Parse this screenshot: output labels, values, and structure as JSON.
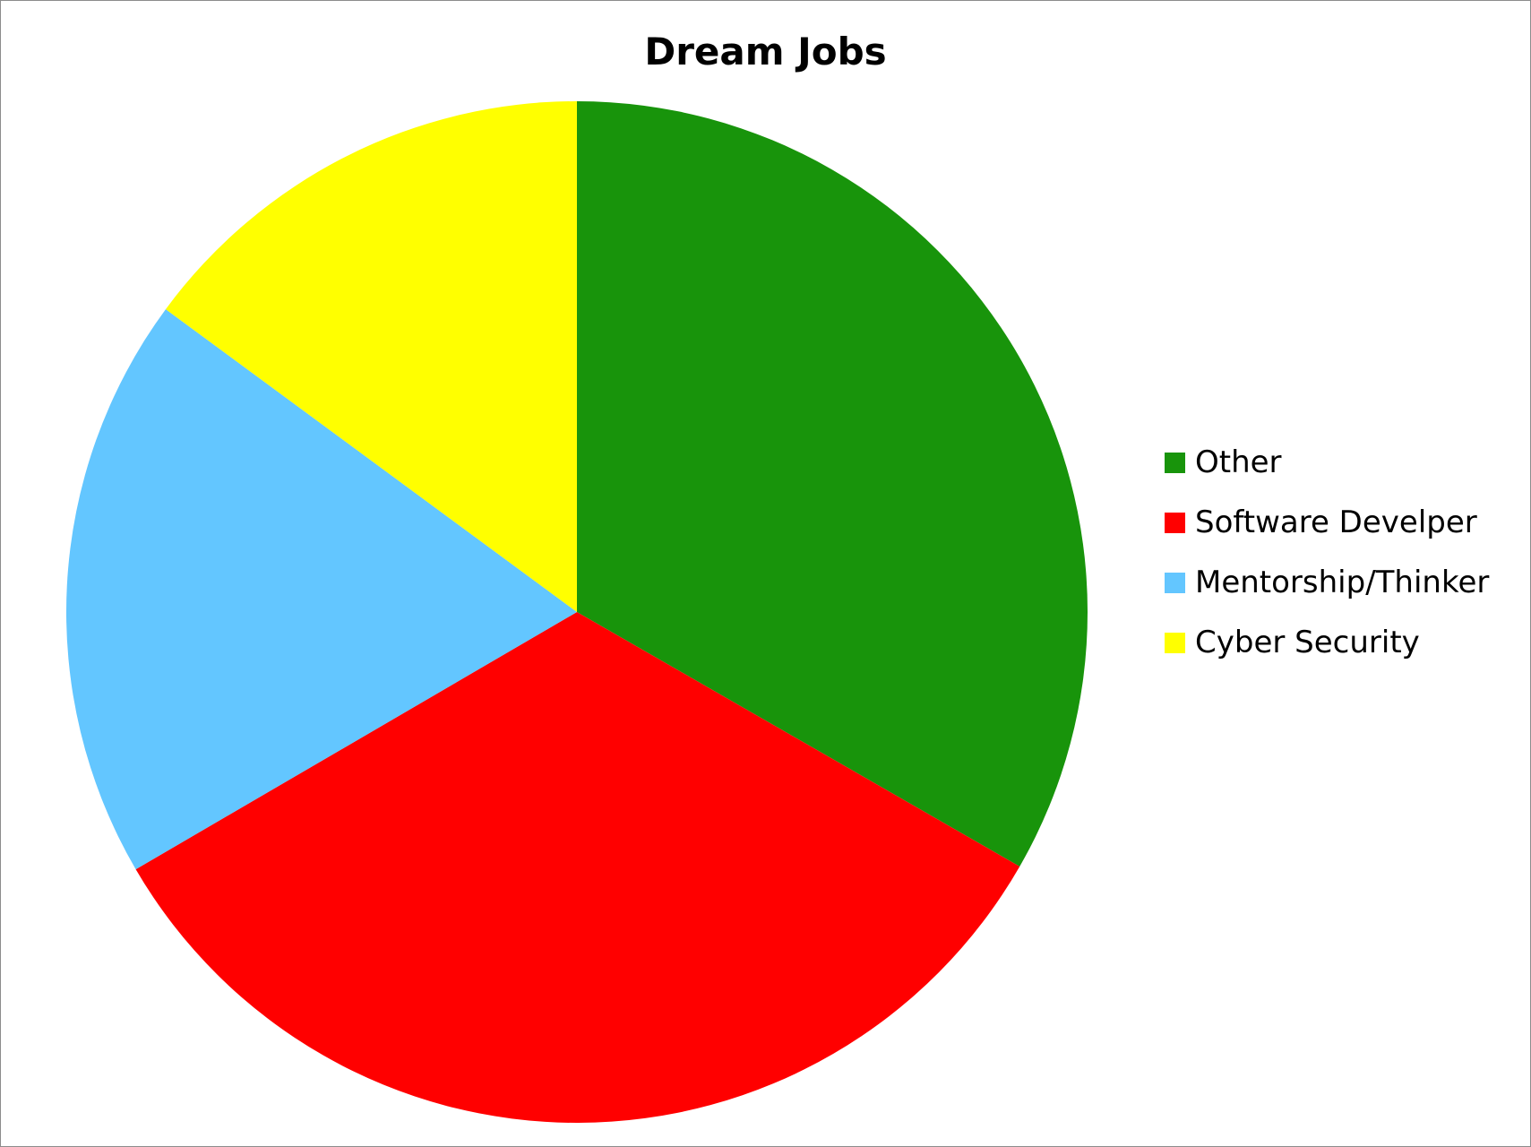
{
  "chart_data": {
    "type": "pie",
    "title": "Dream Jobs",
    "categories": [
      "Other",
      "Software Develper",
      "Mentorship/Thinker",
      "Cyber Security"
    ],
    "values": [
      33.3,
      33.3,
      18.5,
      14.9
    ],
    "colors": [
      "#18940b",
      "#ff0000",
      "#63c6ff",
      "#ffff00"
    ],
    "start_angle_deg": 0,
    "direction": "clockwise",
    "legend_position": "right"
  }
}
